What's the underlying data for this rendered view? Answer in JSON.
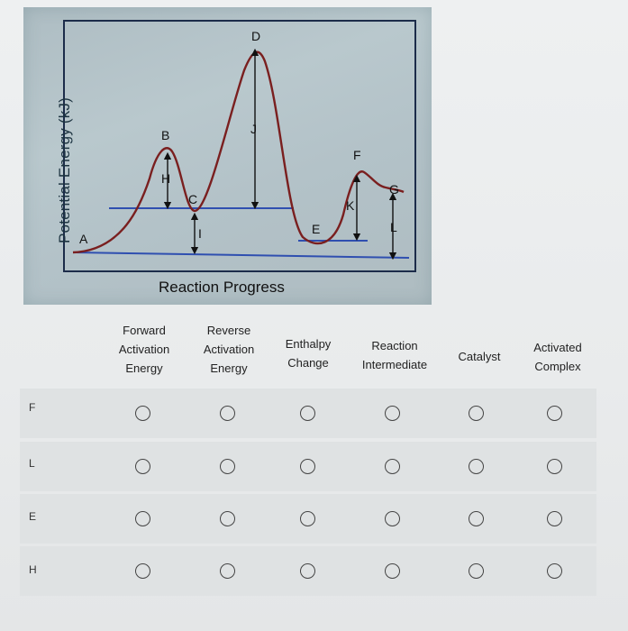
{
  "diagram": {
    "y_axis_title": "Potential Energy (kJ)",
    "x_axis_title": "Reaction Progress",
    "point_labels": [
      "A",
      "B",
      "C",
      "D",
      "E",
      "F",
      "G",
      "H",
      "I",
      "J",
      "K",
      "L"
    ]
  },
  "table": {
    "columns": [
      {
        "key": "forward_activation",
        "lines": [
          "Forward",
          "Activation",
          "Energy"
        ]
      },
      {
        "key": "reverse_activation",
        "lines": [
          "Reverse",
          "Activation",
          "Energy"
        ]
      },
      {
        "key": "enthalpy_change",
        "lines": [
          "Enthalpy",
          "Change"
        ]
      },
      {
        "key": "reaction_intermediate",
        "lines": [
          "Reaction",
          "Intermediate"
        ]
      },
      {
        "key": "catalyst",
        "lines": [
          "Catalyst"
        ]
      },
      {
        "key": "activated_complex",
        "lines": [
          "Activated",
          "Complex"
        ]
      }
    ],
    "rows": [
      {
        "label": "F",
        "selected": null
      },
      {
        "label": "L",
        "selected": null
      },
      {
        "label": "E",
        "selected": null
      },
      {
        "label": "H",
        "selected": null
      }
    ]
  },
  "colors": {
    "curve": "#7a1f1f",
    "levels": "#2f4fb0",
    "arrows": "#111111"
  }
}
